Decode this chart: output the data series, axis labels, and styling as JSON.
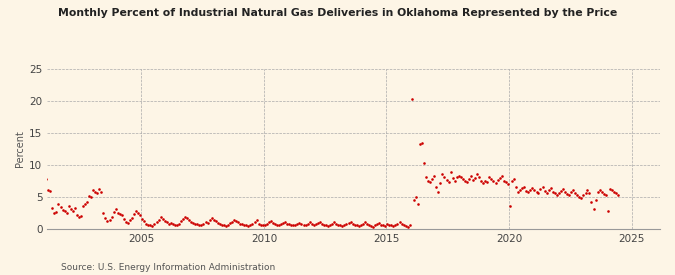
{
  "title": "Monthly Percent of Industrial Natural Gas Deliveries in Oklahoma Represented by the Price",
  "ylabel": "Percent",
  "source": "Source: U.S. Energy Information Administration",
  "background_color": "#fdf5e6",
  "dot_color": "#cc0000",
  "ylim": [
    0,
    25
  ],
  "yticks": [
    0,
    5,
    10,
    15,
    20,
    25
  ],
  "x_start_year": 2001,
  "x_end_year": 2026,
  "xtick_years": [
    2005,
    2010,
    2015,
    2020,
    2025
  ],
  "data_points": [
    9.5,
    7.8,
    6.1,
    5.9,
    3.2,
    2.5,
    2.6,
    3.8,
    3.4,
    2.9,
    2.7,
    2.4,
    3.5,
    3.1,
    2.8,
    3.3,
    2.2,
    1.8,
    2.0,
    3.6,
    3.9,
    4.1,
    5.1,
    4.9,
    6.0,
    5.7,
    5.5,
    6.2,
    5.8,
    2.4,
    1.6,
    1.2,
    1.4,
    1.8,
    2.6,
    3.0,
    2.5,
    2.3,
    2.2,
    1.5,
    1.1,
    0.9,
    1.3,
    1.7,
    2.3,
    2.7,
    2.4,
    2.1,
    1.5,
    1.2,
    0.8,
    0.6,
    0.5,
    0.4,
    0.7,
    1.0,
    1.4,
    1.8,
    1.5,
    1.2,
    1.0,
    0.8,
    0.9,
    0.7,
    0.6,
    0.5,
    0.8,
    1.2,
    1.5,
    1.8,
    1.6,
    1.4,
    1.1,
    0.9,
    0.8,
    0.7,
    0.6,
    0.5,
    0.7,
    1.1,
    0.9,
    1.3,
    1.7,
    1.4,
    1.2,
    0.9,
    0.7,
    0.6,
    0.5,
    0.4,
    0.6,
    0.9,
    1.1,
    1.4,
    1.2,
    1.0,
    0.8,
    0.7,
    0.6,
    0.5,
    0.4,
    0.5,
    0.7,
    1.0,
    1.3,
    0.8,
    0.6,
    0.5,
    0.6,
    0.8,
    1.0,
    1.2,
    0.9,
    0.7,
    0.6,
    0.5,
    0.7,
    0.9,
    1.1,
    0.8,
    0.7,
    0.6,
    0.5,
    0.6,
    0.8,
    0.9,
    0.7,
    0.6,
    0.5,
    0.7,
    1.0,
    0.8,
    0.6,
    0.7,
    0.9,
    1.1,
    0.8,
    0.6,
    0.5,
    0.4,
    0.6,
    0.8,
    1.0,
    0.7,
    0.6,
    0.5,
    0.4,
    0.5,
    0.7,
    0.9,
    1.1,
    0.8,
    0.6,
    0.5,
    0.4,
    0.6,
    0.8,
    1.0,
    0.7,
    0.5,
    0.4,
    0.3,
    0.5,
    0.7,
    0.9,
    0.6,
    0.5,
    0.4,
    0.7,
    0.6,
    0.5,
    0.4,
    0.6,
    0.8,
    1.0,
    0.7,
    0.5,
    0.4,
    0.3,
    0.5,
    20.3,
    4.5,
    5.0,
    3.8,
    13.2,
    13.4,
    10.2,
    8.1,
    7.5,
    7.3,
    7.8,
    8.2,
    6.5,
    5.8,
    7.2,
    8.5,
    8.0,
    7.6,
    7.3,
    8.8,
    7.9,
    7.5,
    8.1,
    8.3,
    8.0,
    7.7,
    7.5,
    7.3,
    7.8,
    8.2,
    7.6,
    7.9,
    8.5,
    8.1,
    7.4,
    7.2,
    7.5,
    7.3,
    8.0,
    7.8,
    7.5,
    7.2,
    7.6,
    7.9,
    8.2,
    7.5,
    7.3,
    7.0,
    3.5,
    7.5,
    7.8,
    6.5,
    5.8,
    6.0,
    6.3,
    6.5,
    5.9,
    5.7,
    6.1,
    6.4,
    6.0,
    5.8,
    5.5,
    6.2,
    6.5,
    5.9,
    5.6,
    6.0,
    6.3,
    5.8,
    5.5,
    5.3,
    5.6,
    5.9,
    6.2,
    5.7,
    5.4,
    5.2,
    5.8,
    6.1,
    5.6,
    5.3,
    5.0,
    4.8,
    5.2,
    5.6,
    6.0,
    5.5,
    4.2,
    3.0,
    4.5,
    5.8,
    6.1,
    5.7,
    5.4,
    5.2,
    2.8,
    6.2,
    6.0,
    5.8,
    5.5,
    5.2
  ]
}
